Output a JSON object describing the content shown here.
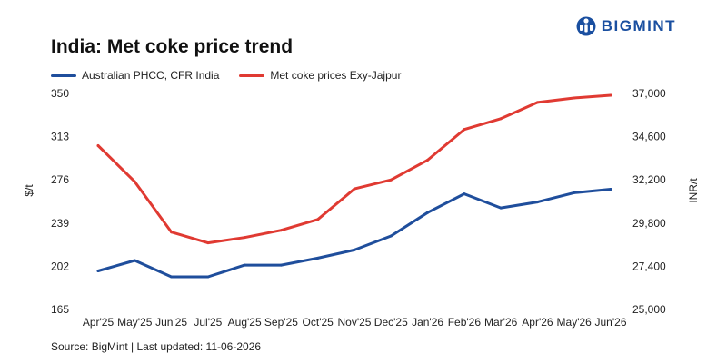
{
  "brand": {
    "name": "BIGMINT",
    "logo_icon": "bigmint-logo-icon",
    "color": "#1a4fa0"
  },
  "source_text": "Source: BigMint | Last updated: 11-06-2026",
  "chart_data": {
    "type": "line",
    "title": "India: Met coke price trend",
    "categories": [
      "Apr'25",
      "May'25",
      "Jun'25",
      "Jul'25",
      "Aug'25",
      "Sep'25",
      "Oct'25",
      "Nov'25",
      "Dec'25",
      "Jan'26",
      "Feb'26",
      "Mar'26",
      "Apr'26",
      "May'26",
      "Jun'26"
    ],
    "left_axis": {
      "label": "$/t",
      "ticks": [
        "350",
        "313",
        "276",
        "239",
        "202",
        "165"
      ],
      "range": [
        165,
        350
      ]
    },
    "right_axis": {
      "label": "INR/t",
      "ticks": [
        "37,000",
        "34,600",
        "32,200",
        "29,800",
        "27,400",
        "25,000"
      ],
      "range": [
        25000,
        37000
      ]
    },
    "series": [
      {
        "name": "Australian PHCC, CFR India",
        "axis": "left",
        "color": "#1f4e9c",
        "values": [
          198,
          207,
          193,
          193,
          203,
          203,
          209,
          216,
          228,
          248,
          264,
          252,
          257,
          265,
          268
        ]
      },
      {
        "name": "Met coke prices Exy-Jajpur",
        "axis": "right",
        "color": "#e03a32",
        "values": [
          34100,
          32100,
          29300,
          28700,
          29000,
          29400,
          30000,
          31700,
          32200,
          33300,
          35000,
          35600,
          36500,
          36750,
          36900
        ]
      }
    ],
    "grid": false,
    "legend_position": "top-left"
  }
}
